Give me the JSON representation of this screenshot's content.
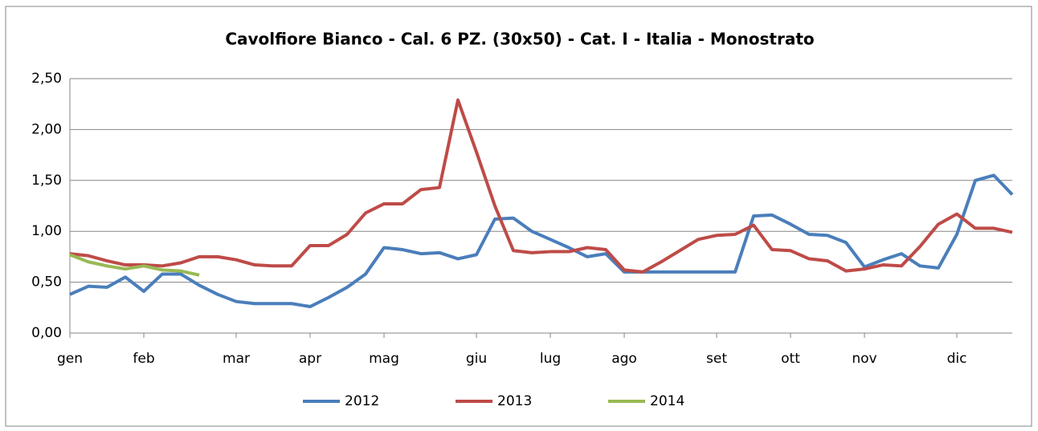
{
  "chart_data": {
    "type": "line",
    "title": "Cavolfiore Bianco - Cal. 6 PZ. (30x50) - Cat. I - Italia - Monostrato",
    "categories": [
      "gen",
      null,
      null,
      null,
      "feb",
      null,
      null,
      null,
      null,
      "mar",
      null,
      null,
      null,
      "apr",
      null,
      null,
      null,
      "mag",
      null,
      null,
      null,
      null,
      "giu",
      null,
      null,
      null,
      "lug",
      null,
      null,
      null,
      "ago",
      null,
      null,
      null,
      null,
      "set",
      null,
      null,
      null,
      "ott",
      null,
      null,
      null,
      "nov",
      null,
      null,
      null,
      null,
      "dic",
      null,
      null,
      null
    ],
    "series": [
      {
        "name": "2012",
        "color": "#4a7ebb",
        "values": [
          0.38,
          0.46,
          0.45,
          0.55,
          0.41,
          0.58,
          0.58,
          0.47,
          0.38,
          0.31,
          0.29,
          0.29,
          0.29,
          0.26,
          0.35,
          0.45,
          0.58,
          0.84,
          0.82,
          0.78,
          0.79,
          0.73,
          0.77,
          1.12,
          1.13,
          1.0,
          0.92,
          0.84,
          0.75,
          0.78,
          0.6,
          0.6,
          0.6,
          0.6,
          0.6,
          0.6,
          0.6,
          1.15,
          1.16,
          1.07,
          0.97,
          0.96,
          0.89,
          0.65,
          0.72,
          0.78,
          0.66,
          0.64,
          0.97,
          1.5,
          1.55,
          1.36
        ]
      },
      {
        "name": "2013",
        "color": "#be4b48",
        "values": [
          0.78,
          0.76,
          0.71,
          0.67,
          0.67,
          0.66,
          0.69,
          0.75,
          0.75,
          0.72,
          0.67,
          0.66,
          0.66,
          0.86,
          0.86,
          0.97,
          1.18,
          1.27,
          1.27,
          1.41,
          1.43,
          2.29,
          1.78,
          1.25,
          0.81,
          0.79,
          0.8,
          0.8,
          0.84,
          0.82,
          0.62,
          0.6,
          0.7,
          0.81,
          0.92,
          0.96,
          0.97,
          1.06,
          0.82,
          0.81,
          0.73,
          0.71,
          0.61,
          0.63,
          0.67,
          0.66,
          0.85,
          1.07,
          1.17,
          1.03,
          1.03,
          0.99
        ]
      },
      {
        "name": "2014",
        "color": "#98b954",
        "values": [
          0.77,
          0.7,
          0.66,
          0.63,
          0.66,
          0.62,
          0.61,
          0.57,
          null,
          null,
          null,
          null,
          null,
          null,
          null,
          null,
          null,
          null,
          null,
          null,
          null,
          null,
          null,
          null,
          null,
          null,
          null,
          null,
          null,
          null,
          null,
          null,
          null,
          null,
          null,
          null,
          null,
          null,
          null,
          null,
          null,
          null,
          null,
          null,
          null,
          null,
          null,
          null,
          null,
          null,
          null,
          null
        ]
      }
    ],
    "ylim": [
      0,
      2.5
    ],
    "yticks": [
      {
        "value": 0,
        "label": "0,00"
      },
      {
        "value": 0.5,
        "label": "0,50"
      },
      {
        "value": 1,
        "label": "1,00"
      },
      {
        "value": 1.5,
        "label": "1,50"
      },
      {
        "value": 2,
        "label": "2,00"
      },
      {
        "value": 2.5,
        "label": "2,50"
      }
    ],
    "grid": true,
    "legend": "bottom"
  }
}
